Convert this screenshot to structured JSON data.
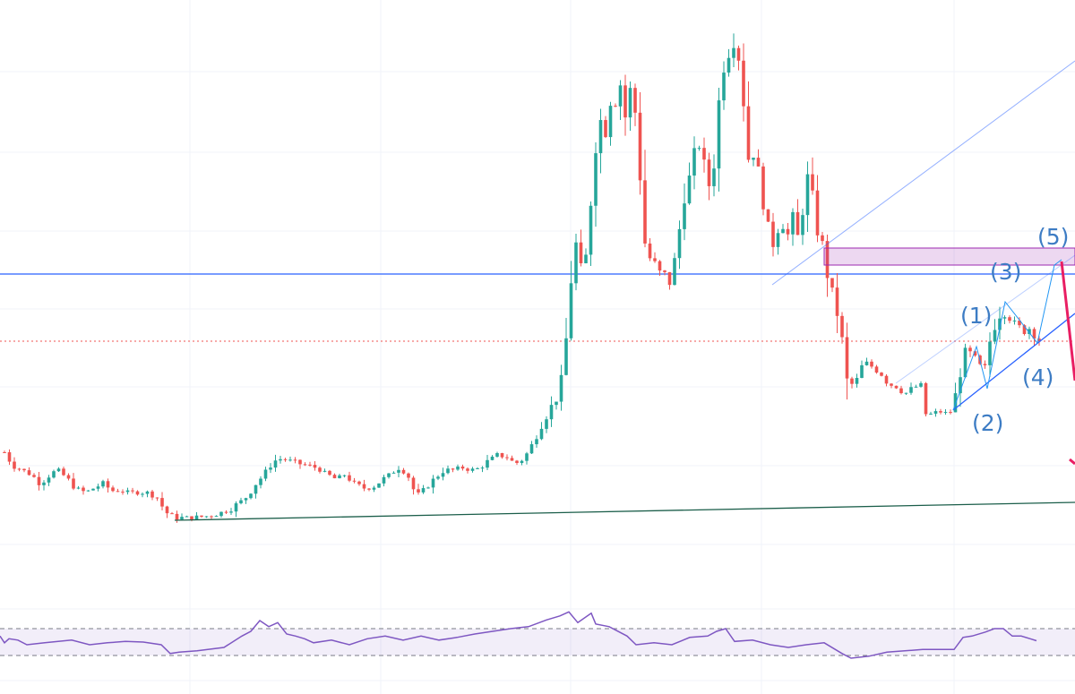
{
  "chart_data": {
    "type": "candlestick",
    "title": "",
    "xlabel": "",
    "ylabel": "",
    "xlim": [
      0,
      1200
    ],
    "ylim": [
      0,
      700
    ],
    "grid": true,
    "colors": {
      "up": "#26a69a",
      "down": "#ef5350",
      "rsi": "#7e57c2",
      "hline": "#2962ff",
      "zone": "#9c27b0",
      "trend": "#1b5e4a",
      "arrow": "#e91e63",
      "wave": "#3d7cc4"
    },
    "closes": [
      [
        5,
        195
      ],
      [
        15,
        180
      ],
      [
        25,
        175
      ],
      [
        35,
        170
      ],
      [
        45,
        160
      ],
      [
        55,
        170
      ],
      [
        65,
        175
      ],
      [
        75,
        165
      ],
      [
        85,
        155
      ],
      [
        95,
        150
      ],
      [
        105,
        155
      ],
      [
        115,
        160
      ],
      [
        125,
        152
      ],
      [
        135,
        152
      ],
      [
        145,
        150
      ],
      [
        155,
        150
      ],
      [
        165,
        150
      ],
      [
        175,
        145
      ],
      [
        185,
        128
      ],
      [
        195,
        122
      ],
      [
        205,
        122
      ],
      [
        215,
        122
      ],
      [
        225,
        123
      ],
      [
        235,
        124
      ],
      [
        245,
        127
      ],
      [
        255,
        130
      ],
      [
        265,
        137
      ],
      [
        275,
        145
      ],
      [
        285,
        160
      ],
      [
        295,
        170
      ],
      [
        305,
        185
      ],
      [
        315,
        188
      ],
      [
        325,
        185
      ],
      [
        335,
        182
      ],
      [
        345,
        180
      ],
      [
        355,
        177
      ],
      [
        365,
        170
      ],
      [
        375,
        165
      ],
      [
        385,
        170
      ],
      [
        395,
        160
      ],
      [
        405,
        155
      ],
      [
        415,
        155
      ],
      [
        425,
        163
      ],
      [
        435,
        170
      ],
      [
        445,
        178
      ],
      [
        455,
        170
      ],
      [
        465,
        145
      ],
      [
        475,
        155
      ],
      [
        485,
        165
      ],
      [
        495,
        175
      ],
      [
        505,
        175
      ],
      [
        515,
        178
      ],
      [
        525,
        175
      ],
      [
        535,
        177
      ],
      [
        545,
        185
      ],
      [
        555,
        192
      ],
      [
        565,
        190
      ],
      [
        575,
        182
      ],
      [
        585,
        188
      ],
      [
        595,
        205
      ],
      [
        605,
        230
      ],
      [
        615,
        245
      ],
      [
        625,
        260
      ],
      [
        632,
        320
      ],
      [
        638,
        400
      ],
      [
        644,
        430
      ],
      [
        650,
        380
      ],
      [
        656,
        430
      ],
      [
        662,
        520
      ],
      [
        668,
        590
      ],
      [
        674,
        530
      ],
      [
        680,
        600
      ],
      [
        686,
        580
      ],
      [
        692,
        610
      ],
      [
        698,
        570
      ],
      [
        704,
        600
      ],
      [
        710,
        570
      ],
      [
        716,
        490
      ],
      [
        722,
        400
      ],
      [
        728,
        420
      ],
      [
        734,
        390
      ],
      [
        740,
        400
      ],
      [
        746,
        380
      ],
      [
        752,
        400
      ],
      [
        758,
        440
      ],
      [
        764,
        490
      ],
      [
        770,
        500
      ],
      [
        776,
        530
      ],
      [
        782,
        540
      ],
      [
        788,
        500
      ],
      [
        794,
        490
      ],
      [
        800,
        550
      ],
      [
        806,
        630
      ],
      [
        812,
        640
      ],
      [
        818,
        660
      ],
      [
        824,
        640
      ],
      [
        830,
        590
      ],
      [
        836,
        520
      ],
      [
        842,
        530
      ],
      [
        848,
        500
      ],
      [
        854,
        470
      ],
      [
        860,
        420
      ],
      [
        866,
        440
      ],
      [
        872,
        460
      ],
      [
        878,
        430
      ],
      [
        884,
        460
      ],
      [
        890,
        430
      ],
      [
        896,
        470
      ],
      [
        902,
        500
      ],
      [
        908,
        470
      ],
      [
        914,
        440
      ],
      [
        920,
        420
      ],
      [
        926,
        380
      ],
      [
        932,
        360
      ],
      [
        938,
        340
      ],
      [
        944,
        270
      ],
      [
        950,
        270
      ],
      [
        956,
        275
      ],
      [
        962,
        290
      ],
      [
        968,
        295
      ],
      [
        974,
        290
      ],
      [
        980,
        285
      ],
      [
        986,
        280
      ],
      [
        992,
        270
      ],
      [
        998,
        270
      ],
      [
        1004,
        265
      ],
      [
        1010,
        260
      ],
      [
        1016,
        265
      ],
      [
        1022,
        268
      ],
      [
        1028,
        270
      ],
      [
        1034,
        235
      ],
      [
        1040,
        238
      ],
      [
        1046,
        240
      ],
      [
        1052,
        240
      ],
      [
        1058,
        238
      ],
      [
        1064,
        242
      ],
      [
        1070,
        280
      ],
      [
        1076,
        300
      ],
      [
        1082,
        305
      ],
      [
        1088,
        300
      ],
      [
        1094,
        290
      ],
      [
        1100,
        290
      ],
      [
        1106,
        325
      ],
      [
        1112,
        345
      ],
      [
        1118,
        355
      ],
      [
        1124,
        350
      ],
      [
        1130,
        340
      ],
      [
        1136,
        335
      ],
      [
        1142,
        330
      ],
      [
        1148,
        335
      ],
      [
        1154,
        328
      ],
      [
        1160,
        320
      ]
    ],
    "levels": {
      "resistance": 394,
      "last_price": 319
    },
    "rsi": {
      "ylim": [
        0,
        100
      ],
      "bands": [
        70,
        30
      ],
      "values": [
        [
          0,
          59
        ],
        [
          5,
          49
        ],
        [
          10,
          55
        ],
        [
          20,
          53
        ],
        [
          30,
          46
        ],
        [
          50,
          49
        ],
        [
          80,
          53
        ],
        [
          100,
          46
        ],
        [
          120,
          49
        ],
        [
          140,
          51
        ],
        [
          160,
          50
        ],
        [
          180,
          46
        ],
        [
          190,
          33
        ],
        [
          200,
          35
        ],
        [
          220,
          37
        ],
        [
          250,
          42
        ],
        [
          270,
          59
        ],
        [
          280,
          66
        ],
        [
          290,
          82
        ],
        [
          300,
          73
        ],
        [
          310,
          79
        ],
        [
          320,
          62
        ],
        [
          330,
          59
        ],
        [
          340,
          55
        ],
        [
          350,
          49
        ],
        [
          370,
          53
        ],
        [
          390,
          46
        ],
        [
          410,
          55
        ],
        [
          430,
          59
        ],
        [
          450,
          53
        ],
        [
          470,
          59
        ],
        [
          490,
          53
        ],
        [
          510,
          57
        ],
        [
          530,
          62
        ],
        [
          550,
          66
        ],
        [
          570,
          70
        ],
        [
          590,
          73
        ],
        [
          610,
          83
        ],
        [
          625,
          89
        ],
        [
          635,
          95
        ],
        [
          645,
          79
        ],
        [
          660,
          93
        ],
        [
          665,
          77
        ],
        [
          680,
          73
        ],
        [
          700,
          59
        ],
        [
          710,
          46
        ],
        [
          730,
          49
        ],
        [
          750,
          46
        ],
        [
          770,
          57
        ],
        [
          790,
          59
        ],
        [
          800,
          66
        ],
        [
          810,
          70
        ],
        [
          820,
          51
        ],
        [
          840,
          53
        ],
        [
          860,
          46
        ],
        [
          880,
          42
        ],
        [
          900,
          46
        ],
        [
          920,
          49
        ],
        [
          940,
          33
        ],
        [
          950,
          26
        ],
        [
          970,
          29
        ],
        [
          990,
          35
        ],
        [
          1010,
          37
        ],
        [
          1030,
          39
        ],
        [
          1050,
          39
        ],
        [
          1065,
          39
        ],
        [
          1075,
          57
        ],
        [
          1085,
          59
        ],
        [
          1100,
          65
        ],
        [
          1110,
          70
        ],
        [
          1120,
          70
        ],
        [
          1130,
          59
        ],
        [
          1140,
          59
        ],
        [
          1150,
          55
        ],
        [
          1157,
          52
        ]
      ]
    },
    "annotations": [
      "(1)",
      "(2)",
      "(3)",
      "(4)",
      "(5)"
    ]
  }
}
